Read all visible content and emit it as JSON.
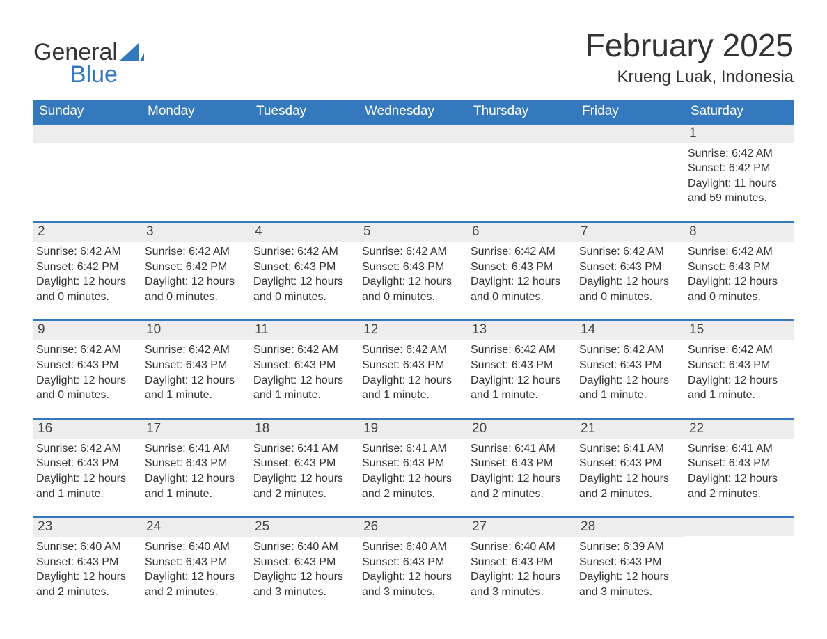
{
  "brand": {
    "general": "General",
    "blue": "Blue",
    "sail_color": "#3478bd",
    "text_color": "#333333"
  },
  "title": {
    "month_year": "February 2025",
    "location": "Krueng Luak, Indonesia"
  },
  "colors": {
    "header_bg": "#3478bd",
    "header_text": "#ffffff",
    "daynum_bg": "#ededed",
    "body_text": "#333333",
    "rule": "#3478bd",
    "page_bg": "#ffffff"
  },
  "days_of_week": [
    "Sunday",
    "Monday",
    "Tuesday",
    "Wednesday",
    "Thursday",
    "Friday",
    "Saturday"
  ],
  "weeks": [
    [
      {
        "num": "",
        "sunrise": "",
        "sunset": "",
        "daylight": ""
      },
      {
        "num": "",
        "sunrise": "",
        "sunset": "",
        "daylight": ""
      },
      {
        "num": "",
        "sunrise": "",
        "sunset": "",
        "daylight": ""
      },
      {
        "num": "",
        "sunrise": "",
        "sunset": "",
        "daylight": ""
      },
      {
        "num": "",
        "sunrise": "",
        "sunset": "",
        "daylight": ""
      },
      {
        "num": "",
        "sunrise": "",
        "sunset": "",
        "daylight": ""
      },
      {
        "num": "1",
        "sunrise": "Sunrise: 6:42 AM",
        "sunset": "Sunset: 6:42 PM",
        "daylight": "Daylight: 11 hours and 59 minutes."
      }
    ],
    [
      {
        "num": "2",
        "sunrise": "Sunrise: 6:42 AM",
        "sunset": "Sunset: 6:42 PM",
        "daylight": "Daylight: 12 hours and 0 minutes."
      },
      {
        "num": "3",
        "sunrise": "Sunrise: 6:42 AM",
        "sunset": "Sunset: 6:42 PM",
        "daylight": "Daylight: 12 hours and 0 minutes."
      },
      {
        "num": "4",
        "sunrise": "Sunrise: 6:42 AM",
        "sunset": "Sunset: 6:43 PM",
        "daylight": "Daylight: 12 hours and 0 minutes."
      },
      {
        "num": "5",
        "sunrise": "Sunrise: 6:42 AM",
        "sunset": "Sunset: 6:43 PM",
        "daylight": "Daylight: 12 hours and 0 minutes."
      },
      {
        "num": "6",
        "sunrise": "Sunrise: 6:42 AM",
        "sunset": "Sunset: 6:43 PM",
        "daylight": "Daylight: 12 hours and 0 minutes."
      },
      {
        "num": "7",
        "sunrise": "Sunrise: 6:42 AM",
        "sunset": "Sunset: 6:43 PM",
        "daylight": "Daylight: 12 hours and 0 minutes."
      },
      {
        "num": "8",
        "sunrise": "Sunrise: 6:42 AM",
        "sunset": "Sunset: 6:43 PM",
        "daylight": "Daylight: 12 hours and 0 minutes."
      }
    ],
    [
      {
        "num": "9",
        "sunrise": "Sunrise: 6:42 AM",
        "sunset": "Sunset: 6:43 PM",
        "daylight": "Daylight: 12 hours and 0 minutes."
      },
      {
        "num": "10",
        "sunrise": "Sunrise: 6:42 AM",
        "sunset": "Sunset: 6:43 PM",
        "daylight": "Daylight: 12 hours and 1 minute."
      },
      {
        "num": "11",
        "sunrise": "Sunrise: 6:42 AM",
        "sunset": "Sunset: 6:43 PM",
        "daylight": "Daylight: 12 hours and 1 minute."
      },
      {
        "num": "12",
        "sunrise": "Sunrise: 6:42 AM",
        "sunset": "Sunset: 6:43 PM",
        "daylight": "Daylight: 12 hours and 1 minute."
      },
      {
        "num": "13",
        "sunrise": "Sunrise: 6:42 AM",
        "sunset": "Sunset: 6:43 PM",
        "daylight": "Daylight: 12 hours and 1 minute."
      },
      {
        "num": "14",
        "sunrise": "Sunrise: 6:42 AM",
        "sunset": "Sunset: 6:43 PM",
        "daylight": "Daylight: 12 hours and 1 minute."
      },
      {
        "num": "15",
        "sunrise": "Sunrise: 6:42 AM",
        "sunset": "Sunset: 6:43 PM",
        "daylight": "Daylight: 12 hours and 1 minute."
      }
    ],
    [
      {
        "num": "16",
        "sunrise": "Sunrise: 6:42 AM",
        "sunset": "Sunset: 6:43 PM",
        "daylight": "Daylight: 12 hours and 1 minute."
      },
      {
        "num": "17",
        "sunrise": "Sunrise: 6:41 AM",
        "sunset": "Sunset: 6:43 PM",
        "daylight": "Daylight: 12 hours and 1 minute."
      },
      {
        "num": "18",
        "sunrise": "Sunrise: 6:41 AM",
        "sunset": "Sunset: 6:43 PM",
        "daylight": "Daylight: 12 hours and 2 minutes."
      },
      {
        "num": "19",
        "sunrise": "Sunrise: 6:41 AM",
        "sunset": "Sunset: 6:43 PM",
        "daylight": "Daylight: 12 hours and 2 minutes."
      },
      {
        "num": "20",
        "sunrise": "Sunrise: 6:41 AM",
        "sunset": "Sunset: 6:43 PM",
        "daylight": "Daylight: 12 hours and 2 minutes."
      },
      {
        "num": "21",
        "sunrise": "Sunrise: 6:41 AM",
        "sunset": "Sunset: 6:43 PM",
        "daylight": "Daylight: 12 hours and 2 minutes."
      },
      {
        "num": "22",
        "sunrise": "Sunrise: 6:41 AM",
        "sunset": "Sunset: 6:43 PM",
        "daylight": "Daylight: 12 hours and 2 minutes."
      }
    ],
    [
      {
        "num": "23",
        "sunrise": "Sunrise: 6:40 AM",
        "sunset": "Sunset: 6:43 PM",
        "daylight": "Daylight: 12 hours and 2 minutes."
      },
      {
        "num": "24",
        "sunrise": "Sunrise: 6:40 AM",
        "sunset": "Sunset: 6:43 PM",
        "daylight": "Daylight: 12 hours and 2 minutes."
      },
      {
        "num": "25",
        "sunrise": "Sunrise: 6:40 AM",
        "sunset": "Sunset: 6:43 PM",
        "daylight": "Daylight: 12 hours and 3 minutes."
      },
      {
        "num": "26",
        "sunrise": "Sunrise: 6:40 AM",
        "sunset": "Sunset: 6:43 PM",
        "daylight": "Daylight: 12 hours and 3 minutes."
      },
      {
        "num": "27",
        "sunrise": "Sunrise: 6:40 AM",
        "sunset": "Sunset: 6:43 PM",
        "daylight": "Daylight: 12 hours and 3 minutes."
      },
      {
        "num": "28",
        "sunrise": "Sunrise: 6:39 AM",
        "sunset": "Sunset: 6:43 PM",
        "daylight": "Daylight: 12 hours and 3 minutes."
      },
      {
        "num": "",
        "sunrise": "",
        "sunset": "",
        "daylight": ""
      }
    ]
  ]
}
